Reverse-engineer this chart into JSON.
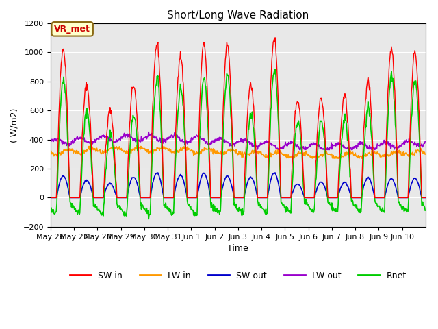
{
  "title": "Short/Long Wave Radiation",
  "ylabel": "( W/m2)",
  "xlabel": "Time",
  "ylim": [
    -200,
    1200
  ],
  "yticks": [
    -200,
    0,
    200,
    400,
    600,
    800,
    1000,
    1200
  ],
  "background_color": "#ffffff",
  "plot_bg_color": "#e8e8e8",
  "annotation_text": "VR_met",
  "annotation_bg": "#ffffcc",
  "annotation_border": "#8B6914",
  "annotation_text_color": "#cc0000",
  "colors": {
    "SW_in": "#ff0000",
    "LW_in": "#ff9900",
    "SW_out": "#0000cc",
    "LW_out": "#9900cc",
    "Rnet": "#00cc00"
  },
  "legend_labels": [
    "SW in",
    "LW in",
    "SW out",
    "LW out",
    "Rnet"
  ],
  "sw_in_peaks": [
    1025,
    775,
    600,
    775,
    1060,
    980,
    1050,
    1050,
    780,
    1100,
    670,
    680,
    700,
    800,
    1025,
    1010
  ],
  "cloud_factors": [
    0.9,
    0.7,
    0.55,
    0.7,
    0.95,
    0.88,
    0.95,
    0.95,
    0.7,
    1.0,
    0.6,
    0.62,
    0.63,
    0.73,
    0.93,
    0.92
  ],
  "SW_out_peaks": [
    150,
    120,
    100,
    130,
    160,
    150,
    160,
    150,
    130,
    165,
    90,
    100,
    110,
    130,
    140,
    140
  ],
  "n_days": 16,
  "dt_hours": 0.5,
  "tick_labels": [
    "May 26",
    "May 27",
    "May 28",
    "May 29",
    "May 30",
    "May 31",
    "Jun 1",
    "Jun 2",
    "Jun 3",
    "Jun 4",
    "Jun 5",
    "Jun 6",
    "Jun 7",
    "Jun 8",
    "Jun 9",
    "Jun 10"
  ]
}
